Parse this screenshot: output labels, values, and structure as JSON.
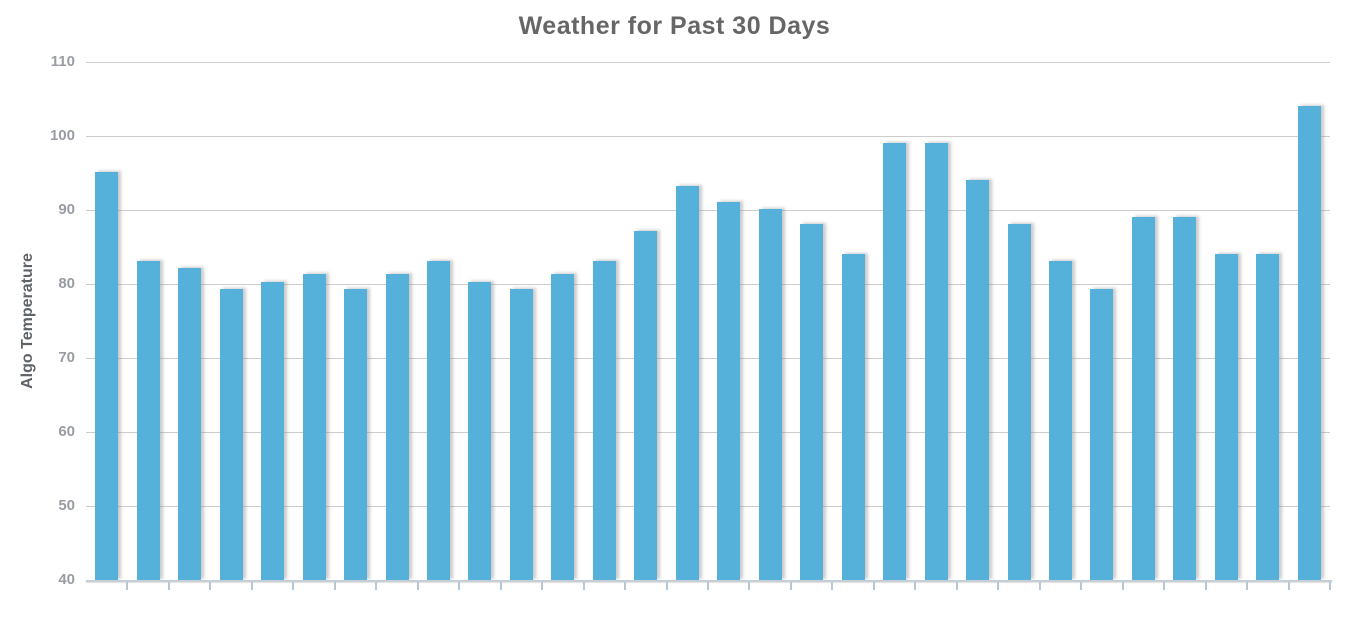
{
  "title": "Weather for Past 30 Days",
  "chart_data": {
    "type": "bar",
    "title": "Weather for Past 30 Days",
    "xlabel": "",
    "ylabel": "Algo Temperature",
    "ylim": [
      40,
      110
    ],
    "y_tick_interval": 10,
    "y_tick_labels": [
      110,
      100,
      90,
      80,
      70,
      60,
      50,
      40
    ],
    "x_tick_labels_visible": false,
    "grid": true,
    "legend_position": "none",
    "num_bars": 30,
    "values": [
      95.2,
      83.1,
      82.2,
      79.3,
      80.3,
      81.3,
      79.3,
      81.3,
      83.1,
      80.3,
      79.3,
      81.3,
      83.1,
      87.1,
      93.2,
      91.1,
      90.2,
      88.1,
      84.1,
      99.1,
      99.1,
      94.1,
      88.1,
      83.1,
      79.3,
      89.1,
      89.1,
      84.1,
      84.1,
      104.1
    ]
  },
  "colors": {
    "bar": "#55b1d9",
    "gridline": "#cccccc",
    "axis_line": "#c5ced5",
    "axis_tick": "#b4c8d8",
    "title_text": "#666666",
    "axis_title_text": "#5f6368",
    "tick_label_text": "#999da3"
  }
}
